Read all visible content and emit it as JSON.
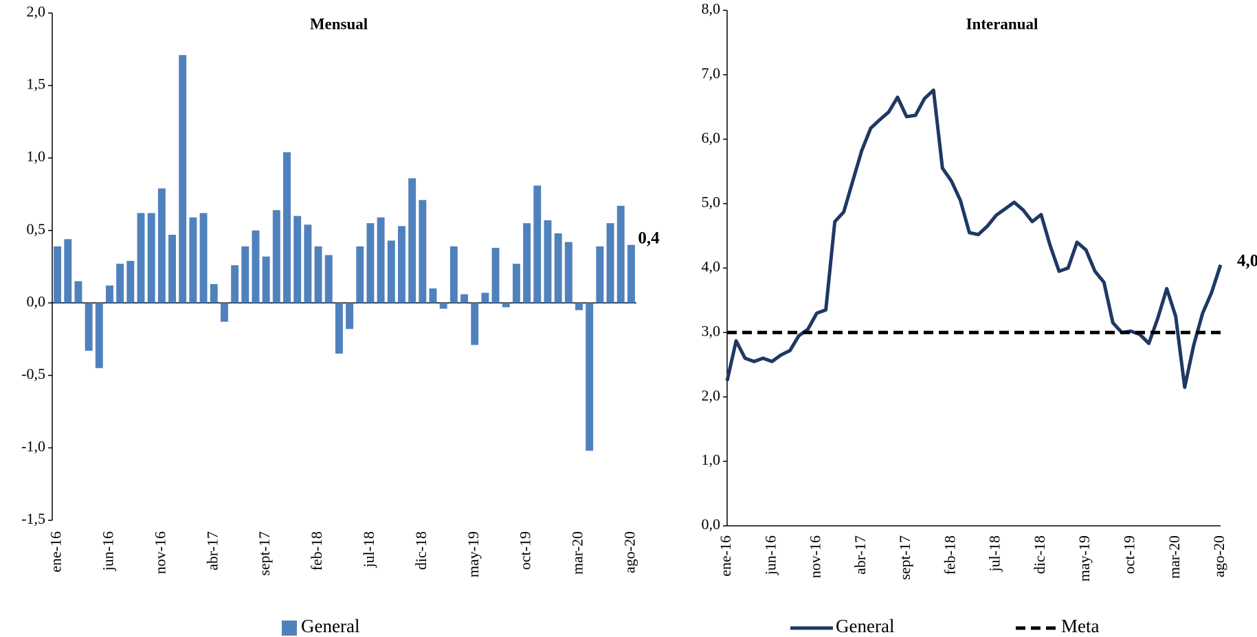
{
  "chart_data": [
    {
      "type": "bar",
      "title": "Mensual",
      "categories": [
        "ene-16",
        null,
        null,
        null,
        null,
        "jun-16",
        null,
        null,
        null,
        null,
        "nov-16",
        null,
        null,
        null,
        null,
        "abr-17",
        null,
        null,
        null,
        null,
        "sept-17",
        null,
        null,
        null,
        null,
        "feb-18",
        null,
        null,
        null,
        null,
        "jul-18",
        null,
        null,
        null,
        null,
        "dic-18",
        null,
        null,
        null,
        null,
        "may-19",
        null,
        null,
        null,
        null,
        "oct-19",
        null,
        null,
        null,
        null,
        "mar-20",
        null,
        null,
        null,
        null,
        "ago-20"
      ],
      "series": [
        {
          "name": "General",
          "color": "#4f81bd",
          "values": [
            0.39,
            0.44,
            0.15,
            -0.33,
            -0.45,
            0.12,
            0.27,
            0.29,
            0.62,
            0.62,
            0.79,
            0.47,
            1.71,
            0.59,
            0.62,
            0.13,
            -0.13,
            0.26,
            0.39,
            0.5,
            0.32,
            0.64,
            1.04,
            0.6,
            0.54,
            0.39,
            0.33,
            -0.35,
            -0.18,
            0.39,
            0.55,
            0.59,
            0.43,
            0.53,
            0.86,
            0.71,
            0.1,
            -0.04,
            0.39,
            0.06,
            -0.29,
            0.07,
            0.38,
            -0.03,
            0.27,
            0.55,
            0.81,
            0.57,
            0.48,
            0.42,
            -0.05,
            -1.02,
            0.39,
            0.55,
            0.67,
            0.4
          ],
          "value_labels": [
            null,
            null,
            null,
            null,
            null,
            null,
            null,
            null,
            null,
            null,
            null,
            null,
            null,
            null,
            null,
            null,
            null,
            null,
            null,
            null,
            null,
            null,
            null,
            null,
            null,
            null,
            null,
            null,
            null,
            null,
            null,
            null,
            null,
            null,
            null,
            null,
            null,
            null,
            null,
            null,
            null,
            null,
            null,
            null,
            null,
            null,
            null,
            null,
            null,
            null,
            null,
            null,
            null,
            null,
            null,
            "0,4"
          ]
        }
      ],
      "ylim": [
        -1.5,
        2.0
      ],
      "yticks": [
        {
          "value": -1.5,
          "label": "-1,5"
        },
        {
          "value": -1.0,
          "label": "-1,0"
        },
        {
          "value": -0.5,
          "label": "-0,5"
        },
        {
          "value": 0,
          "label": "0,0"
        },
        {
          "value": 0.5,
          "label": "0,5"
        },
        {
          "value": 1.0,
          "label": "1,0"
        },
        {
          "value": 1.5,
          "label": "1,5"
        },
        {
          "value": 2.0,
          "label": "2,0"
        }
      ],
      "grid": false,
      "legend": "bottom"
    },
    {
      "type": "line",
      "title": "Interanual",
      "categories": [
        "ene-16",
        null,
        null,
        null,
        null,
        "jun-16",
        null,
        null,
        null,
        null,
        "nov-16",
        null,
        null,
        null,
        null,
        "abr-17",
        null,
        null,
        null,
        null,
        "sept-17",
        null,
        null,
        null,
        null,
        "feb-18",
        null,
        null,
        null,
        null,
        "jul-18",
        null,
        null,
        null,
        null,
        "dic-18",
        null,
        null,
        null,
        null,
        "may-19",
        null,
        null,
        null,
        null,
        "oct-19",
        null,
        null,
        null,
        null,
        "mar-20",
        null,
        null,
        null,
        null,
        "ago-20"
      ],
      "series": [
        {
          "name": "General",
          "color": "#1f3864",
          "dash": false,
          "values": [
            2.25,
            2.87,
            2.6,
            2.55,
            2.6,
            2.55,
            2.65,
            2.72,
            2.95,
            3.05,
            3.3,
            3.35,
            4.72,
            4.87,
            5.35,
            5.82,
            6.17,
            6.3,
            6.42,
            6.65,
            6.35,
            6.37,
            6.63,
            6.76,
            5.55,
            5.35,
            5.05,
            4.55,
            4.52,
            4.65,
            4.82,
            4.92,
            5.02,
            4.9,
            4.72,
            4.83,
            4.35,
            3.95,
            4.0,
            4.4,
            4.28,
            3.95,
            3.78,
            3.15,
            3.0,
            3.02,
            2.97,
            2.83,
            3.22,
            3.68,
            3.25,
            2.15,
            2.8,
            3.3,
            3.62,
            4.05
          ],
          "value_labels": [
            null,
            null,
            null,
            null,
            null,
            null,
            null,
            null,
            null,
            null,
            null,
            null,
            null,
            null,
            null,
            null,
            null,
            null,
            null,
            null,
            null,
            null,
            null,
            null,
            null,
            null,
            null,
            null,
            null,
            null,
            null,
            null,
            null,
            null,
            null,
            null,
            null,
            null,
            null,
            null,
            null,
            null,
            null,
            null,
            null,
            null,
            null,
            null,
            null,
            null,
            null,
            null,
            null,
            null,
            null,
            "4,0"
          ]
        },
        {
          "name": "Meta",
          "color": "#000000",
          "dash": true,
          "values": [
            3,
            3,
            3,
            3,
            3,
            3,
            3,
            3,
            3,
            3,
            3,
            3,
            3,
            3,
            3,
            3,
            3,
            3,
            3,
            3,
            3,
            3,
            3,
            3,
            3,
            3,
            3,
            3,
            3,
            3,
            3,
            3,
            3,
            3,
            3,
            3,
            3,
            3,
            3,
            3,
            3,
            3,
            3,
            3,
            3,
            3,
            3,
            3,
            3,
            3,
            3,
            3,
            3,
            3,
            3,
            3
          ]
        }
      ],
      "ylim": [
        0,
        8
      ],
      "yticks": [
        {
          "value": 0,
          "label": "0,0"
        },
        {
          "value": 1,
          "label": "1,0"
        },
        {
          "value": 2,
          "label": "2,0"
        },
        {
          "value": 3,
          "label": "3,0"
        },
        {
          "value": 4,
          "label": "4,0"
        },
        {
          "value": 5,
          "label": "5,0"
        },
        {
          "value": 6,
          "label": "6,0"
        },
        {
          "value": 7,
          "label": "7,0"
        },
        {
          "value": 8,
          "label": "8,0"
        }
      ],
      "grid": false,
      "legend": "bottom"
    }
  ]
}
